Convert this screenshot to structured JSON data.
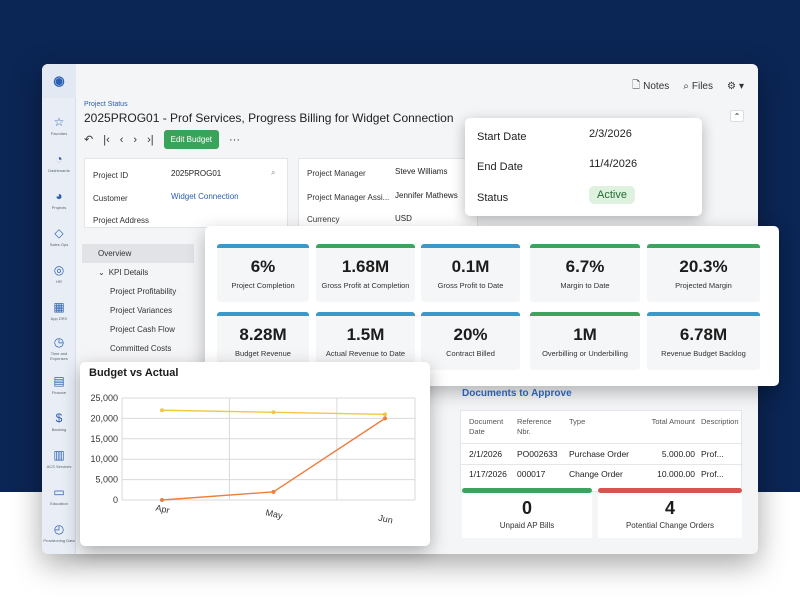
{
  "header": {
    "breadcrumb": "Project Status",
    "title": "2025PROG01 - Prof Services, Progress Billing for Widget Connection",
    "notes_label": "Notes",
    "files_label": "Files",
    "edit_budget_label": "Edit Budget",
    "more_label": "···"
  },
  "rail": {
    "items": [
      {
        "icon": "☆",
        "label": "Favorites"
      },
      {
        "icon": "◔",
        "label": "Dashboards"
      },
      {
        "icon": "◕",
        "label": "Projects"
      },
      {
        "icon": "◇",
        "label": "Sales Ops"
      },
      {
        "icon": "◎",
        "label": "HR"
      },
      {
        "icon": "▦",
        "label": "App DRX"
      },
      {
        "icon": "◷",
        "label": "Time and Expenses"
      },
      {
        "icon": "▤",
        "label": "Finance"
      },
      {
        "icon": "$",
        "label": "Banking"
      },
      {
        "icon": "▥",
        "label": "ACS Services"
      },
      {
        "icon": "▭",
        "label": "Education"
      },
      {
        "icon": "◴",
        "label": "Provisioning Data"
      }
    ]
  },
  "form": {
    "project_id_label": "Project ID",
    "project_id_value": "2025PROG01",
    "customer_label": "Customer",
    "customer_value": "Widget Connection",
    "address_label": "Project Address",
    "pm_label": "Project Manager",
    "pm_value": "Steve Williams",
    "pma_label": "Project Manager Assi...",
    "pma_value": "Jennifer Mathews",
    "currency_label": "Currency",
    "currency_value": "USD"
  },
  "nav": {
    "overview": "Overview",
    "kpi_details": "KPI Details",
    "items": [
      "Project Profitability",
      "Project Variances",
      "Project Cash Flow",
      "Committed Costs"
    ]
  },
  "dates": {
    "start_label": "Start Date",
    "start_value": "2/3/2026",
    "end_label": "End Date",
    "end_value": "11/4/2026",
    "status_label": "Status",
    "status_value": "Active"
  },
  "kpis": [
    {
      "value": "6%",
      "label": "Project Completion",
      "accent": "#3a99c8"
    },
    {
      "value": "1.68M",
      "label": "Gross Profit at Completion",
      "accent": "#3ea35f"
    },
    {
      "value": "0.1M",
      "label": "Gross Profit to Date",
      "accent": "#3a99c8"
    },
    {
      "value": "6.7%",
      "label": "Margin to Date",
      "accent": "#3ea35f"
    },
    {
      "value": "20.3%",
      "label": "Projected Margin",
      "accent": "#3ea35f"
    },
    {
      "value": "8.28M",
      "label": "Budget Revenue",
      "accent": "#3a99c8"
    },
    {
      "value": "1.5M",
      "label": "Actual Revenue to Date",
      "accent": "#3a99c8"
    },
    {
      "value": "20%",
      "label": "Contract Billed",
      "accent": "#3a99c8"
    },
    {
      "value": "1M",
      "label": "Overbilling or Underbilling",
      "accent": "#3ea35f"
    },
    {
      "value": "6.78M",
      "label": "Revenue Budget Backlog",
      "accent": "#3a99c8"
    }
  ],
  "docs": {
    "title": "Documents to Approve",
    "headers": [
      "Document Date",
      "Reference Nbr.",
      "Type",
      "Total Amount",
      "Description"
    ],
    "rows": [
      {
        "date": "2/1/2026",
        "ref": "PO002633",
        "type": "Purchase Order",
        "amount": "5.000.00",
        "desc": "Prof..."
      },
      {
        "date": "1/17/2026",
        "ref": "000017",
        "type": "Change Order",
        "amount": "10.000.00",
        "desc": "Prof..."
      }
    ]
  },
  "counters": [
    {
      "value": "0",
      "label": "Unpaid AP Bills",
      "accent": "#3ea35f"
    },
    {
      "value": "4",
      "label": "Potential Change Orders",
      "accent": "#d9534f"
    }
  ],
  "chart_data": {
    "type": "line",
    "title": "Budget vs Actual",
    "categories": [
      "Apr",
      "May",
      "Jun"
    ],
    "ylim": [
      0,
      25000
    ],
    "yticks": [
      "0",
      "5,000",
      "10,000",
      "15,000",
      "20,000",
      "25,000"
    ],
    "grid": true,
    "series": [
      {
        "values": [
          22000,
          21500,
          21000
        ],
        "color": "#f2c744"
      },
      {
        "values": [
          0,
          2000,
          20000
        ],
        "color": "#ef7d3c"
      }
    ]
  }
}
